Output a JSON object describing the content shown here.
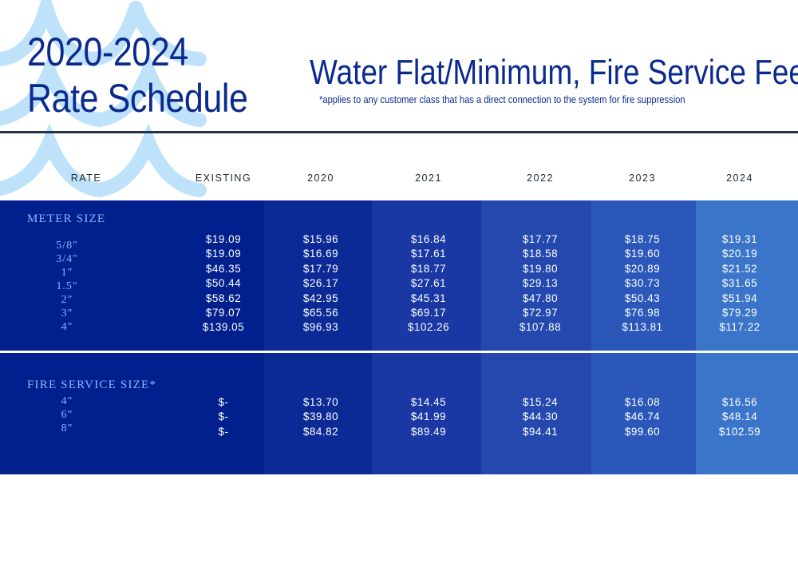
{
  "header": {
    "title_line1": "2020-2024",
    "title_line2": "Rate Schedule",
    "subtitle": "Water Flat/Minimum, Fire Service Fee",
    "note": "*applies to any customer class that has a direct connection to the system for fire suppression"
  },
  "table": {
    "headers": [
      "RATE",
      "EXISTING",
      "2020",
      "2021",
      "2022",
      "2023",
      "2024"
    ],
    "meter_section": {
      "label": "METER SIZE",
      "sizes": [
        "5/8\"",
        "3/4\"",
        "1\"",
        "1.5\"",
        "2\"",
        "3\"",
        "4\""
      ],
      "columns": [
        [
          "$19.09",
          "$19.09",
          "$46.35",
          "$50.44",
          "$58.62",
          "$79.07",
          "$139.05"
        ],
        [
          "$15.96",
          "$16.69",
          "$17.79",
          "$26.17",
          "$42.95",
          "$65.56",
          "$96.93"
        ],
        [
          "$16.84",
          "$17.61",
          "$18.77",
          "$27.61",
          "$45.31",
          "$69.17",
          "$102.26"
        ],
        [
          "$17.77",
          "$18.58",
          "$19.80",
          "$29.13",
          "$47.80",
          "$72.97",
          "$107.88"
        ],
        [
          "$18.75",
          "$19.60",
          "$20.89",
          "$30.73",
          "$50.43",
          "$76.98",
          "$113.81"
        ],
        [
          "$19.31",
          "$20.19",
          "$21.52",
          "$31.65",
          "$51.94",
          "$79.29",
          "$117.22"
        ]
      ]
    },
    "fire_section": {
      "label": "FIRE SERVICE SIZE*",
      "sizes": [
        "4\"",
        "6\"",
        "8\""
      ],
      "columns": [
        [
          "$-",
          "$-",
          "$-"
        ],
        [
          "$13.70",
          "$39.80",
          "$84.82"
        ],
        [
          "$14.45",
          "$41.99",
          "$89.49"
        ],
        [
          "$15.24",
          "$44.30",
          "$94.41"
        ],
        [
          "$16.08",
          "$46.74",
          "$99.60"
        ],
        [
          "$16.56",
          "$48.14",
          "$102.59"
        ]
      ]
    }
  },
  "colors": {
    "band_colors": [
      "#02208d",
      "#0c2a95",
      "#1a38a3",
      "#2448ae",
      "#2c57ba",
      "#3b75c9"
    ],
    "wave": "#bfe2fb",
    "title": "#0b2a8f"
  }
}
